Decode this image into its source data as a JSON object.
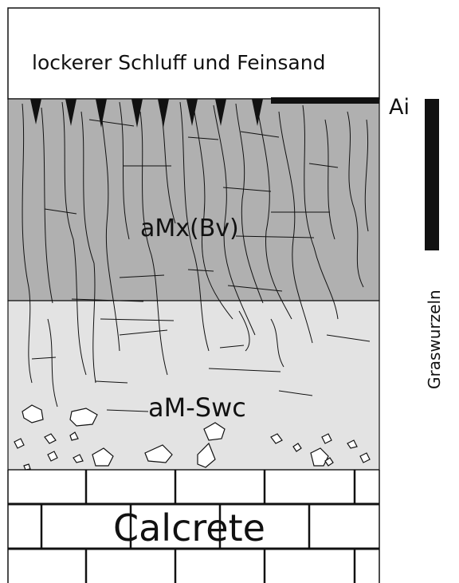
{
  "labels": {
    "top_layer": "lockerer Schluff und Feinsand",
    "horizon_ai": "Ai",
    "horizon_amx": "aMx(Bv)",
    "horizon_amswc": "aM-Swc",
    "base_layer": "Calcrete",
    "root_marker": "Graswurzeln"
  },
  "colors": {
    "top_fill": "#ffffff",
    "amx_fill": "#b0b0b0",
    "amswc_fill": "#e3e3e3",
    "calcrete_fill": "#ffffff",
    "line": "#111111"
  }
}
